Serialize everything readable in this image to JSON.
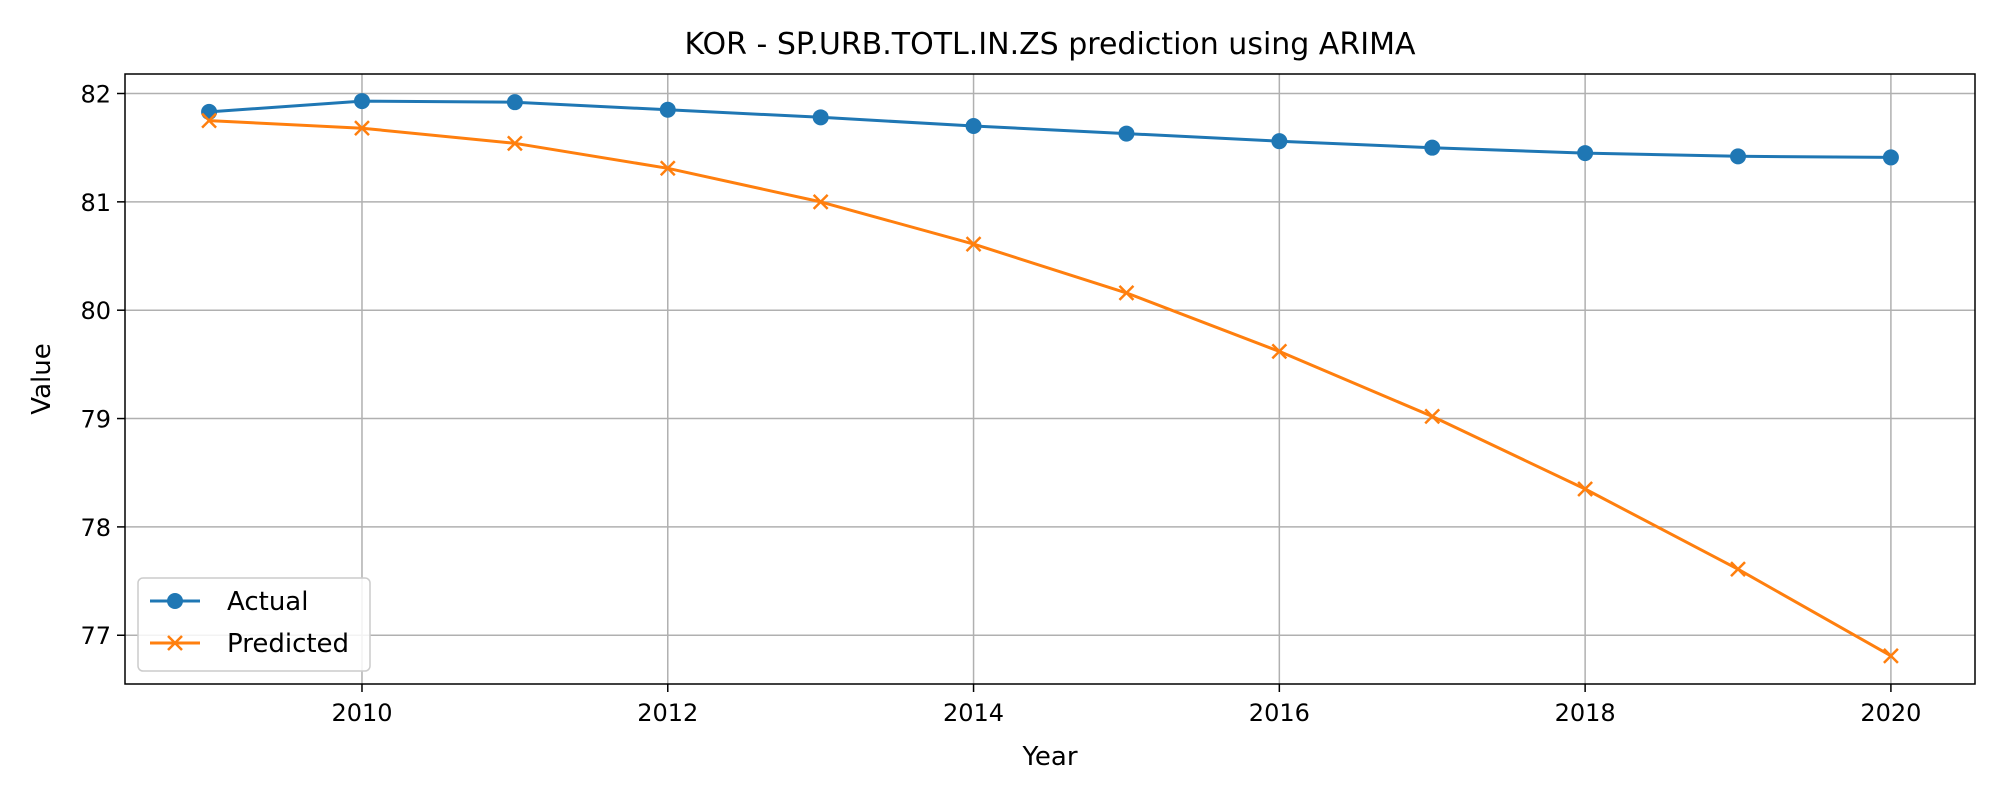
{
  "chart_data": {
    "type": "line",
    "title": "KOR - SP.URB.TOTL.IN.ZS prediction using ARIMA",
    "xlabel": "Year",
    "ylabel": "Value",
    "x": [
      2009,
      2010,
      2011,
      2012,
      2013,
      2014,
      2015,
      2016,
      2017,
      2018,
      2019,
      2020
    ],
    "xlim": [
      2008.45,
      2020.55
    ],
    "ylim": [
      76.55,
      82.18
    ],
    "xticks": [
      "2010",
      "2012",
      "2014",
      "2016",
      "2018",
      "2020"
    ],
    "yticks": [
      "77",
      "78",
      "79",
      "80",
      "81",
      "82"
    ],
    "grid": true,
    "legend_position": "lower-left",
    "series": [
      {
        "name": "Actual",
        "color": "#1f77b4",
        "marker": "circle",
        "values": [
          81.83,
          81.93,
          81.92,
          81.85,
          81.78,
          81.7,
          81.63,
          81.56,
          81.5,
          81.45,
          81.42,
          81.41
        ]
      },
      {
        "name": "Predicted",
        "color": "#ff7f0e",
        "marker": "x",
        "values": [
          81.75,
          81.68,
          81.54,
          81.31,
          81.0,
          80.61,
          80.16,
          79.62,
          79.02,
          78.35,
          77.61,
          76.81
        ]
      }
    ]
  }
}
